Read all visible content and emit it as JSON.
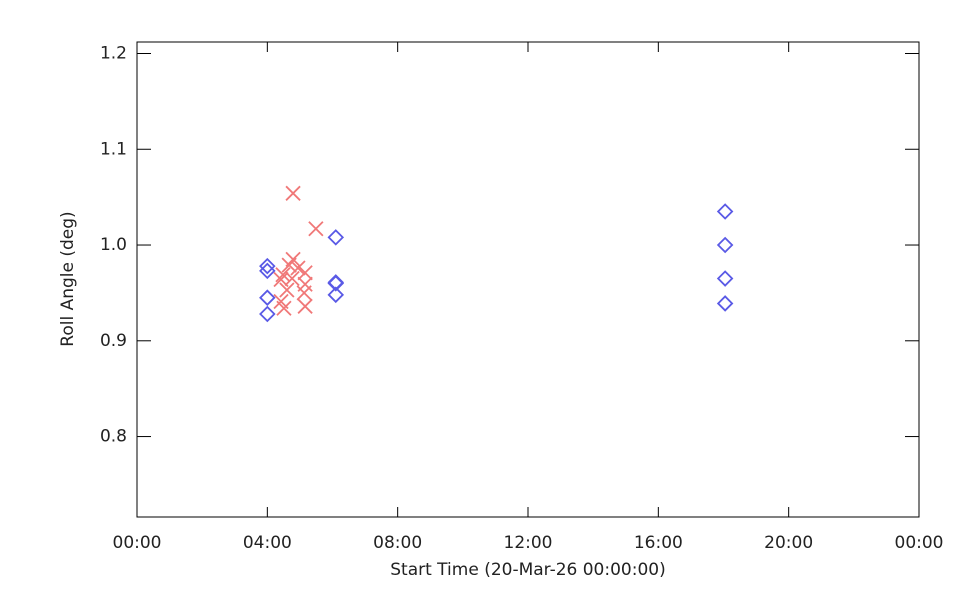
{
  "chart_data": {
    "type": "scatter",
    "xlabel": "Start Time (20-Mar-26 00:00:00)",
    "ylabel": "Roll Angle (deg)",
    "xlim": [
      0,
      24
    ],
    "xticks": [
      {
        "value": 0,
        "label": "00:00"
      },
      {
        "value": 4,
        "label": "04:00"
      },
      {
        "value": 8,
        "label": "08:00"
      },
      {
        "value": 12,
        "label": "12:00"
      },
      {
        "value": 16,
        "label": "16:00"
      },
      {
        "value": 20,
        "label": "20:00"
      },
      {
        "value": 24,
        "label": "00:00"
      }
    ],
    "ylim": [
      0.716,
      1.212
    ],
    "yticks": [
      0.8,
      0.9,
      {
        "value": 1,
        "label": "1.0"
      },
      1.1,
      1.2
    ],
    "grid": false,
    "series": [
      {
        "color": "#5a5ae6",
        "marker": "diamond",
        "x": [
          4.0,
          4.0,
          4.0,
          4.0,
          6.1,
          6.1,
          6.1,
          6.1,
          18.05,
          18.05,
          18.05,
          18.05
        ],
        "values": [
          0.978,
          0.973,
          0.945,
          0.928,
          1.008,
          0.961,
          0.96,
          0.948,
          1.035,
          1.0,
          0.965,
          0.939
        ]
      },
      {
        "color": "#f07878",
        "marker": "x",
        "x": [
          4.79,
          5.49,
          4.79,
          4.67,
          4.94,
          4.48,
          5.16,
          4.42,
          4.76,
          5.16,
          4.6,
          5.13,
          4.42,
          4.51,
          5.16
        ],
        "values": [
          1.054,
          1.017,
          0.985,
          0.979,
          0.976,
          0.969,
          0.971,
          0.964,
          0.965,
          0.959,
          0.953,
          0.95,
          0.941,
          0.934,
          0.936
        ]
      }
    ]
  }
}
